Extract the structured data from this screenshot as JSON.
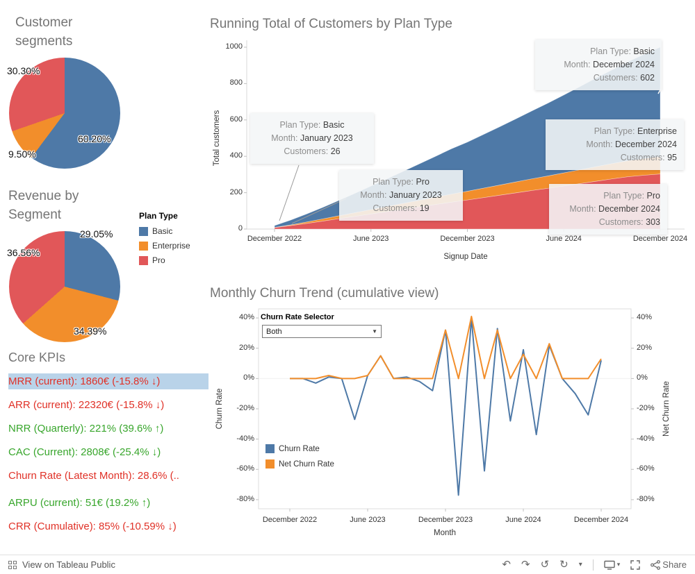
{
  "legend": {
    "title": "Plan Type",
    "items": [
      {
        "label": "Basic",
        "color": "#4e79a7"
      },
      {
        "label": "Enterprise",
        "color": "#f28e2b"
      },
      {
        "label": "Pro",
        "color": "#e15759"
      }
    ]
  },
  "kpis": {
    "title": "Core KPIs",
    "items": [
      {
        "text": "MRR (current): 1860€ (-15.8% ↓)",
        "color": "#e03127",
        "highlighted": true
      },
      {
        "text": "ARR (current): 22320€ (-15.8% ↓)",
        "color": "#e03127",
        "highlighted": false
      },
      {
        "text": "NRR (Quarterly): 221% (39.6% ↑)",
        "color": "#38a62c",
        "highlighted": false
      },
      {
        "text": "CAC (Current): 2808€ (-25.4% ↓)",
        "color": "#38a62c",
        "highlighted": false
      },
      {
        "text": "Churn Rate (Latest Month): 28.6% (..",
        "color": "#e03127",
        "highlighted": false
      },
      {
        "text": "ARPU (current): 51€ (19.2% ↑)",
        "color": "#38a62c",
        "highlighted": false
      },
      {
        "text": "CRR (Cumulative): 85% (-10.59% ↓)",
        "color": "#e03127",
        "highlighted": false
      }
    ]
  },
  "toolbar": {
    "left_label": "View on Tableau Public",
    "share_label": "Share",
    "icons": [
      "tableau-grid-icon",
      "undo-icon",
      "redo-icon",
      "reset-icon",
      "refresh-icon",
      "chevron-down-icon",
      "display-icon",
      "fullscreen-icon",
      "share-icon"
    ]
  },
  "chart_data": [
    {
      "id": "customer_segments",
      "type": "pie",
      "title": "Customer segments",
      "labels": [
        "Basic",
        "Enterprise",
        "Pro"
      ],
      "values": [
        60.2,
        9.5,
        30.3
      ],
      "display_labels": [
        "60.20%",
        "9.50%",
        "30.30%"
      ],
      "colors": [
        "#4e79a7",
        "#f28e2b",
        "#e15759"
      ]
    },
    {
      "id": "revenue_by_segment",
      "type": "pie",
      "title": "Revenue by Segment",
      "labels": [
        "Basic",
        "Enterprise",
        "Pro"
      ],
      "values": [
        29.05,
        34.39,
        36.56
      ],
      "display_labels": [
        "29.05%",
        "34.39%",
        "36.56%"
      ],
      "colors": [
        "#4e79a7",
        "#f28e2b",
        "#e15759"
      ]
    },
    {
      "id": "running_total",
      "type": "area",
      "title": "Running Total of Customers by Plan Type",
      "xlabel": "Signup Date",
      "ylabel": "Total customers",
      "ylim": [
        0,
        1000
      ],
      "stacked": true,
      "x": [
        "Dec 2022",
        "Jan 2023",
        "Feb 2023",
        "Mar 2023",
        "Apr 2023",
        "May 2023",
        "Jun 2023",
        "Jul 2023",
        "Aug 2023",
        "Sep 2023",
        "Oct 2023",
        "Nov 2023",
        "Dec 2023",
        "Jan 2024",
        "Feb 2024",
        "Mar 2024",
        "Apr 2024",
        "May 2024",
        "Jun 2024",
        "Jul 2024",
        "Aug 2024",
        "Sep 2024",
        "Oct 2024",
        "Nov 2024",
        "Dec 2024"
      ],
      "x_ticks": [
        {
          "i": 0,
          "label": "December 2022"
        },
        {
          "i": 6,
          "label": "June 2023"
        },
        {
          "i": 12,
          "label": "December 2023"
        },
        {
          "i": 18,
          "label": "June 2024"
        },
        {
          "i": 24,
          "label": "December 2024"
        }
      ],
      "y_ticks": [
        {
          "v": 0,
          "label": "0"
        },
        {
          "v": 200,
          "label": "200"
        },
        {
          "v": 400,
          "label": "400"
        },
        {
          "v": 600,
          "label": "600"
        },
        {
          "v": 800,
          "label": "800"
        },
        {
          "v": 1000,
          "label": "1000"
        }
      ],
      "series": [
        {
          "name": "Pro",
          "color": "#e15759",
          "values": [
            8,
            19,
            31,
            44,
            57,
            70,
            83,
            96,
            109,
            122,
            135,
            148,
            160,
            173,
            186,
            199,
            212,
            224,
            237,
            250,
            263,
            276,
            288,
            296,
            303
          ]
        },
        {
          "name": "Enterprise",
          "color": "#f28e2b",
          "values": [
            1,
            4,
            8,
            12,
            16,
            20,
            24,
            28,
            32,
            36,
            40,
            44,
            48,
            52,
            56,
            60,
            64,
            68,
            72,
            76,
            80,
            84,
            88,
            92,
            95
          ]
        },
        {
          "name": "Basic",
          "color": "#4e79a7",
          "values": [
            10,
            26,
            44,
            63,
            84,
            106,
            129,
            152,
            176,
            200,
            224,
            249,
            270,
            295,
            320,
            346,
            373,
            400,
            428,
            457,
            487,
            515,
            544,
            573,
            602
          ]
        }
      ],
      "annotations": [
        {
          "name": "basic-dec-2024",
          "rows": [
            [
              "Plan Type:",
              "Basic"
            ],
            [
              "Month:",
              "December 2024"
            ],
            [
              "Customers:",
              "602"
            ]
          ]
        },
        {
          "name": "basic-jan-2023",
          "rows": [
            [
              "Plan Type:",
              "Basic"
            ],
            [
              "Month:",
              "January 2023"
            ],
            [
              "Customers:",
              "26"
            ]
          ]
        },
        {
          "name": "pro-jan-2023",
          "rows": [
            [
              "Plan Type:",
              "Pro"
            ],
            [
              "Month:",
              "January 2023"
            ],
            [
              "Customers:",
              "19"
            ]
          ]
        },
        {
          "name": "enterprise-dec-2024",
          "rows": [
            [
              "Plan Type:",
              "Enterprise"
            ],
            [
              "Month:",
              "December 2024"
            ],
            [
              "Customers:",
              "95"
            ]
          ]
        },
        {
          "name": "pro-dec-2024",
          "rows": [
            [
              "Plan Type:",
              "Pro"
            ],
            [
              "Month:",
              "December 2024"
            ],
            [
              "Customers:",
              "303"
            ]
          ]
        }
      ]
    },
    {
      "id": "churn_trend",
      "type": "line",
      "title": "Monthly Churn Trend (cumulative view)",
      "xlabel": "Month",
      "ylabel_left": "Churn Rate",
      "ylabel_right": "Net Churn Rate",
      "ylim": [
        -80,
        40
      ],
      "selector": {
        "label": "Churn Rate Selector",
        "value": "Both"
      },
      "x": [
        "Dec 2022",
        "Jan 2023",
        "Feb 2023",
        "Mar 2023",
        "Apr 2023",
        "May 2023",
        "Jun 2023",
        "Jul 2023",
        "Aug 2023",
        "Sep 2023",
        "Oct 2023",
        "Nov 2023",
        "Dec 2023",
        "Jan 2024",
        "Feb 2024",
        "Mar 2024",
        "Apr 2024",
        "May 2024",
        "Jun 2024",
        "Jul 2024",
        "Aug 2024",
        "Sep 2024",
        "Oct 2024",
        "Nov 2024",
        "Dec 2024"
      ],
      "x_ticks": [
        {
          "i": 0,
          "label": "December 2022"
        },
        {
          "i": 6,
          "label": "June 2023"
        },
        {
          "i": 12,
          "label": "December 2023"
        },
        {
          "i": 18,
          "label": "June 2024"
        },
        {
          "i": 24,
          "label": "December 2024"
        }
      ],
      "y_ticks": [
        {
          "v": 40,
          "label": "40%"
        },
        {
          "v": 20,
          "label": "20%"
        },
        {
          "v": 0,
          "label": "0%"
        },
        {
          "v": -20,
          "label": "-20%"
        },
        {
          "v": -40,
          "label": "-40%"
        },
        {
          "v": -60,
          "label": "-60%"
        },
        {
          "v": -80,
          "label": "-80%"
        }
      ],
      "series": [
        {
          "name": "Churn Rate",
          "color": "#4e79a7",
          "values": [
            0,
            0,
            -3,
            1,
            0,
            -27,
            2,
            15,
            0,
            1,
            -2,
            -8,
            32,
            -77,
            40,
            -61,
            33,
            -28,
            19,
            -37,
            22,
            0,
            -10,
            -24,
            12
          ]
        },
        {
          "name": "Net Churn Rate",
          "color": "#f28e2b",
          "values": [
            0,
            0,
            0,
            2,
            0,
            0,
            2,
            15,
            0,
            0,
            0,
            0,
            32,
            0,
            41,
            0,
            32,
            0,
            16,
            0,
            23,
            0,
            0,
            0,
            13
          ]
        }
      ]
    }
  ]
}
